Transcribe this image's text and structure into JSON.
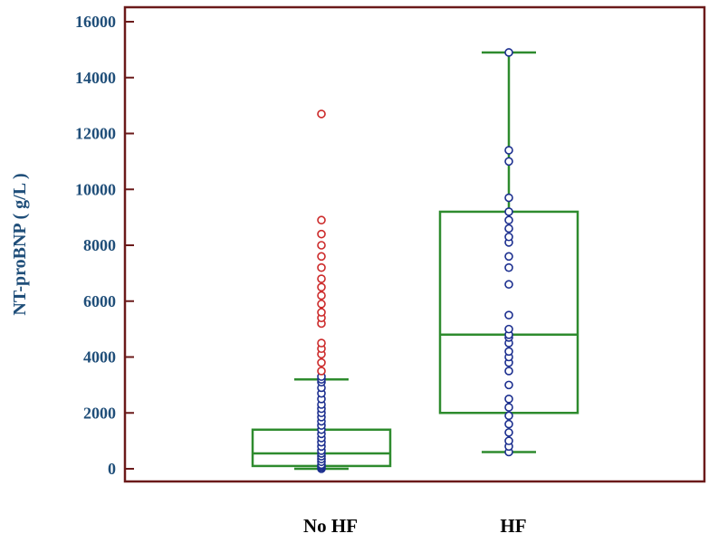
{
  "chart_data": {
    "type": "box",
    "ylabel": "NT-proBNP ( g/L )",
    "xlabel": "",
    "ylim": [
      0,
      16000
    ],
    "yticks": [
      0,
      2000,
      4000,
      6000,
      8000,
      10000,
      12000,
      14000,
      16000
    ],
    "grid": false,
    "categories": [
      "No HF",
      "HF"
    ],
    "colors": {
      "box": "#2e8b2e",
      "point": "#1c2f8f",
      "outlier": "#cc2a2a",
      "frame": "#6b1a1a",
      "tick_label": "#1f4e79",
      "category_label": "#000000"
    },
    "boxes": [
      {
        "name": "No HF",
        "min": 0,
        "q1": 100,
        "median": 550,
        "q3": 1400,
        "max": 3200,
        "points": [
          0,
          50,
          100,
          150,
          250,
          350,
          450,
          550,
          650,
          800,
          950,
          1100,
          1250,
          1400,
          1550,
          1700,
          1850,
          2000,
          2150,
          2300,
          2500,
          2700,
          2900,
          3100,
          3200,
          3300
        ],
        "outliers": [
          3500,
          3800,
          4100,
          4300,
          4500,
          5200,
          5400,
          5600,
          5900,
          6200,
          6500,
          6800,
          7200,
          7600,
          8000,
          8400,
          8900,
          12700
        ]
      },
      {
        "name": "HF",
        "min": 600,
        "q1": 2000,
        "median": 4800,
        "q3": 9200,
        "max": 14900,
        "points": [
          600,
          800,
          1000,
          1300,
          1600,
          1900,
          2200,
          2500,
          3000,
          3500,
          3800,
          4000,
          4200,
          4500,
          4700,
          4800,
          5000,
          5500,
          6600,
          7200,
          7600,
          8100,
          8300,
          8600,
          8900,
          9200,
          9700,
          11000,
          11400,
          14900
        ],
        "outliers": []
      }
    ]
  }
}
